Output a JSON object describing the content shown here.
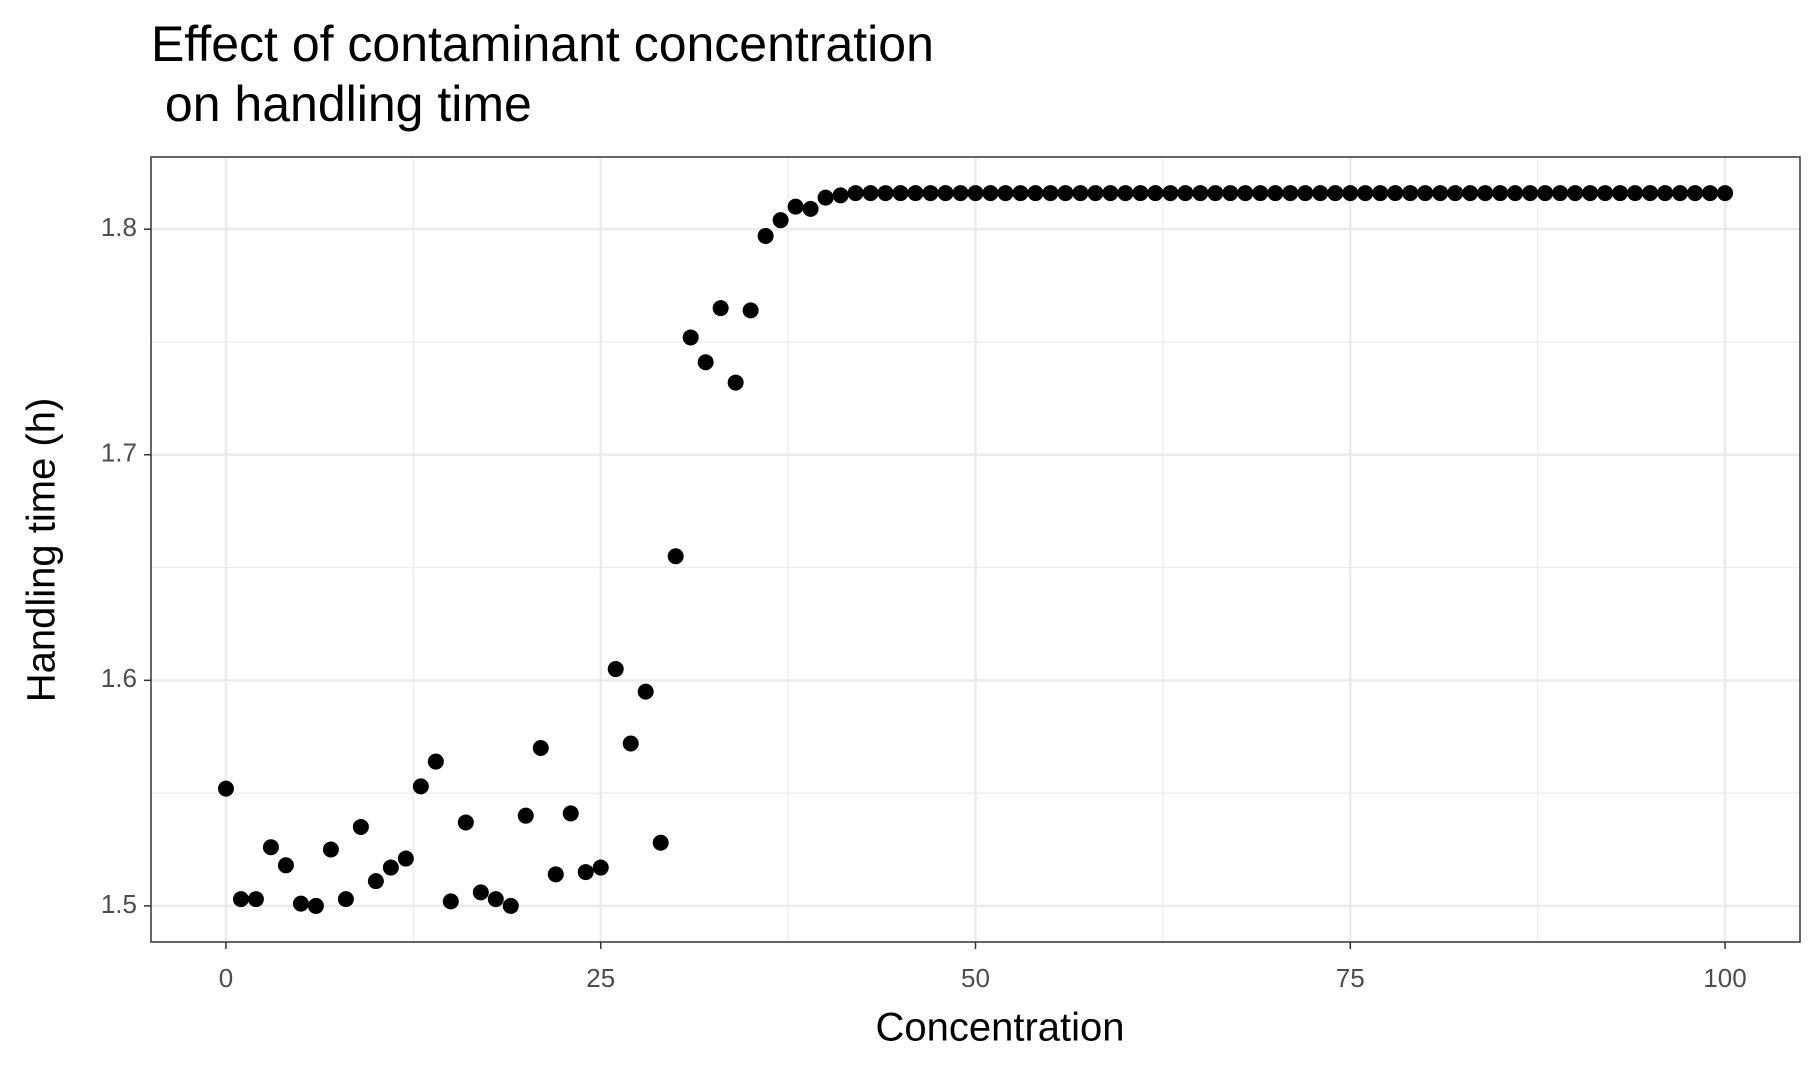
{
  "chart_data": {
    "type": "scatter",
    "title": "Effect of contaminant concentration\n on handling time",
    "x_label": "Concentration",
    "y_label": "Handling time (h)",
    "color": "#000000",
    "grid": true,
    "xlim": [
      -5,
      105
    ],
    "ylim": [
      1.484,
      1.832
    ],
    "xticks": [
      0,
      25,
      50,
      75,
      100
    ],
    "yticks": [
      1.5,
      1.6,
      1.7,
      1.8
    ],
    "x_minor_grid": [
      12.5,
      37.5,
      62.5,
      87.5
    ],
    "y_minor_grid": [
      1.55,
      1.65,
      1.75
    ],
    "x": [
      0,
      1,
      2,
      3,
      4,
      5,
      6,
      7,
      8,
      9,
      10,
      11,
      12,
      13,
      14,
      15,
      16,
      17,
      18,
      19,
      20,
      21,
      22,
      23,
      24,
      25,
      26,
      27,
      28,
      29,
      30,
      31,
      32,
      33,
      34,
      35,
      36,
      37,
      38,
      39,
      40,
      41,
      42,
      43,
      44,
      45,
      46,
      47,
      48,
      49,
      50,
      51,
      52,
      53,
      54,
      55,
      56,
      57,
      58,
      59,
      60,
      61,
      62,
      63,
      64,
      65,
      66,
      67,
      68,
      69,
      70,
      71,
      72,
      73,
      74,
      75,
      76,
      77,
      78,
      79,
      80,
      81,
      82,
      83,
      84,
      85,
      86,
      87,
      88,
      89,
      90,
      91,
      92,
      93,
      94,
      95,
      96,
      97,
      98,
      99,
      100
    ],
    "values": [
      1.552,
      1.503,
      1.503,
      1.526,
      1.518,
      1.501,
      1.5,
      1.525,
      1.503,
      1.535,
      1.511,
      1.517,
      1.521,
      1.553,
      1.564,
      1.502,
      1.537,
      1.506,
      1.503,
      1.5,
      1.54,
      1.57,
      1.514,
      1.541,
      1.515,
      1.517,
      1.605,
      1.572,
      1.595,
      1.528,
      1.655,
      1.752,
      1.741,
      1.765,
      1.732,
      1.764,
      1.797,
      1.804,
      1.81,
      1.809,
      1.814,
      1.815,
      1.816,
      1.816,
      1.816,
      1.816,
      1.816,
      1.816,
      1.816,
      1.816,
      1.816,
      1.816,
      1.816,
      1.816,
      1.816,
      1.816,
      1.816,
      1.816,
      1.816,
      1.816,
      1.816,
      1.816,
      1.816,
      1.816,
      1.816,
      1.816,
      1.816,
      1.816,
      1.816,
      1.816,
      1.816,
      1.816,
      1.816,
      1.816,
      1.816,
      1.816,
      1.816,
      1.816,
      1.816,
      1.816,
      1.816,
      1.816,
      1.816,
      1.816,
      1.816,
      1.816,
      1.816,
      1.816,
      1.816,
      1.816,
      1.816,
      1.816,
      1.816,
      1.816,
      1.816,
      1.816,
      1.816,
      1.816,
      1.816,
      1.816,
      1.816
    ]
  }
}
